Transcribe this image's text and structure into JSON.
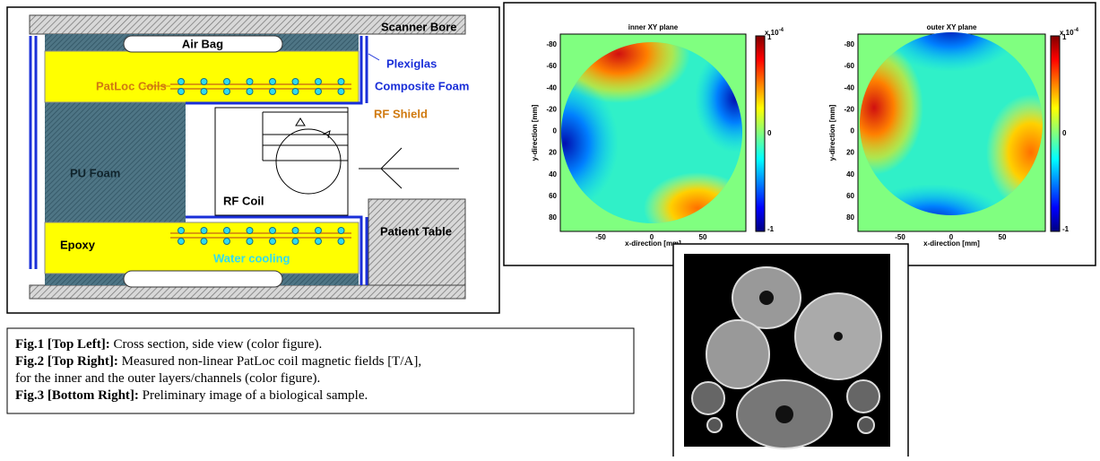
{
  "fig1": {
    "labels": {
      "scanner_bore": "Scanner Bore",
      "air_bag": "Air Bag",
      "plexiglas": "Plexiglas",
      "patloc_coils": "PatLoc Coils",
      "composite_foam": "Composite Foam",
      "rf_shield": "RF Shield",
      "pu_foam": "PU Foam",
      "rf_coil": "RF Coil",
      "patient_table": "Patient Table",
      "epoxy": "Epoxy",
      "water_cooling": "Water cooling"
    }
  },
  "fig2": {
    "panels": [
      {
        "title": "inner XY plane",
        "xlabel": "x-direction [mm]",
        "ylabel": "y-direction [mm]"
      },
      {
        "title": "outer XY plane",
        "xlabel": "x-direction [mm]",
        "ylabel": "y-direction [mm]"
      }
    ],
    "xticks": [
      -50,
      0,
      50
    ],
    "yticks": [
      -80,
      -60,
      -40,
      -20,
      0,
      20,
      40,
      60,
      80
    ],
    "colorbar": {
      "exponent_base": "x 10",
      "exponent": "-4",
      "ticks": [
        1,
        0,
        -1
      ]
    }
  },
  "caption": {
    "lines": [
      {
        "label": "Fig.1 [Top Left]:",
        "text": " Cross section, side view (color figure)."
      },
      {
        "label": "Fig.2 [Top Right]:",
        "text": " Measured non-linear PatLoc coil magnetic fields [T/A],"
      },
      {
        "text": "for the inner and the outer layers/channels (color figure)."
      },
      {
        "label": "Fig.3 [Bottom Right]:",
        "text": " Preliminary image of a biological sample."
      }
    ]
  }
}
